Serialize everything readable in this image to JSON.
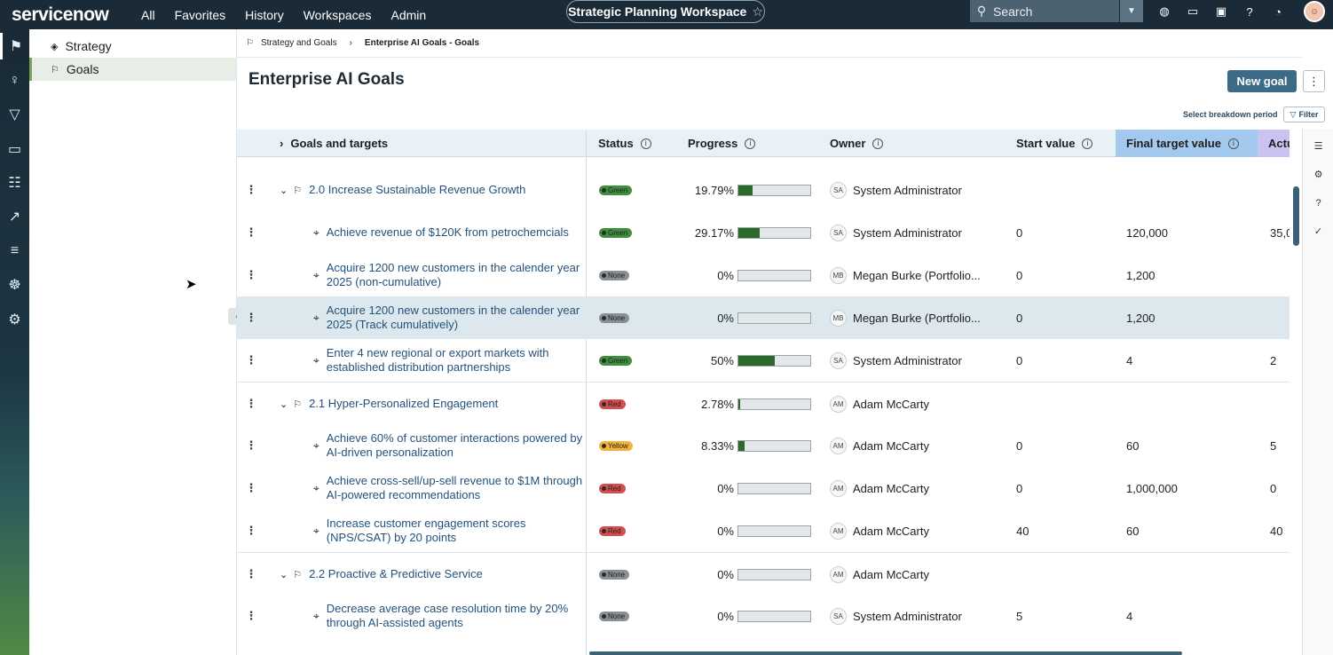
{
  "topnav": {
    "logo": "servicenow",
    "menu": [
      "All",
      "Favorites",
      "History",
      "Workspaces",
      "Admin"
    ],
    "workspace": "Strategic Planning Workspace",
    "search_placeholder": "Search"
  },
  "sidebar": {
    "items": [
      {
        "label": "Strategy",
        "icon": "diamond-icon"
      },
      {
        "label": "Goals",
        "icon": "flag-icon",
        "selected": true
      }
    ]
  },
  "breadcrumb": {
    "parent": "Strategy and Goals",
    "current": "Enterprise AI Goals - Goals"
  },
  "page": {
    "title": "Enterprise AI Goals",
    "new_goal": "New goal",
    "breakdown": "Select breakdown period",
    "filter": "Filter"
  },
  "columns": {
    "goals": "Goals and targets",
    "status": "Status",
    "progress": "Progress",
    "owner": "Owner",
    "start": "Start value",
    "final": "Final target value",
    "actual": "Actu"
  },
  "status_colors": {
    "Green": "#3f8f3f",
    "None": "#8a8f93",
    "Red": "#d24f4f",
    "Yellow": "#f0b63a"
  },
  "rows": [
    {
      "level": 0,
      "name": "2.0 Increase Sustainable Revenue Growth",
      "status": "Green",
      "pct": "19.79%",
      "progress": 0.1979,
      "ini": "SA",
      "owner": "System Administrator",
      "start": "",
      "final": "",
      "actual": ""
    },
    {
      "level": 1,
      "name": "Achieve revenue of $120K from petrochemcials",
      "status": "Green",
      "pct": "29.17%",
      "progress": 0.2917,
      "ini": "SA",
      "owner": "System Administrator",
      "start": "0",
      "final": "120,000",
      "actual": "35,0"
    },
    {
      "level": 1,
      "name": "Acquire 1200 new customers in the calender year 2025 (non-cumulative)",
      "status": "None",
      "pct": "0%",
      "progress": 0,
      "ini": "MB",
      "owner": "Megan Burke (Portfolio...",
      "start": "0",
      "final": "1,200",
      "actual": ""
    },
    {
      "level": 1,
      "name": "Acquire 1200 new customers in the calender year 2025 (Track cumulatively)",
      "status": "None",
      "pct": "0%",
      "progress": 0,
      "ini": "MB",
      "owner": "Megan Burke (Portfolio...",
      "start": "0",
      "final": "1,200",
      "actual": ""
    },
    {
      "level": 1,
      "name": "Enter 4 new regional or export markets with established distribution partnerships",
      "status": "Green",
      "pct": "50%",
      "progress": 0.5,
      "ini": "SA",
      "owner": "System Administrator",
      "start": "0",
      "final": "4",
      "actual": "2"
    },
    {
      "level": 0,
      "name": "2.1 Hyper-Personalized Engagement",
      "status": "Red",
      "pct": "2.78%",
      "progress": 0.0278,
      "ini": "AM",
      "owner": "Adam McCarty",
      "start": "",
      "final": "",
      "actual": ""
    },
    {
      "level": 1,
      "name": "Achieve 60% of customer interactions powered by AI-driven personalization",
      "status": "Yellow",
      "pct": "8.33%",
      "progress": 0.0833,
      "ini": "AM",
      "owner": "Adam McCarty",
      "start": "0",
      "final": "60",
      "actual": "5"
    },
    {
      "level": 1,
      "name": "Achieve cross-sell/up-sell revenue to $1M through AI-powered recommendations",
      "status": "Red",
      "pct": "0%",
      "progress": 0,
      "ini": "AM",
      "owner": "Adam McCarty",
      "start": "0",
      "final": "1,000,000",
      "actual": "0"
    },
    {
      "level": 1,
      "name": "Increase customer engagement scores (NPS/CSAT) by 20 points",
      "status": "Red",
      "pct": "0%",
      "progress": 0,
      "ini": "AM",
      "owner": "Adam McCarty",
      "start": "40",
      "final": "60",
      "actual": "40"
    },
    {
      "level": 0,
      "name": "2.2 Proactive & Predictive Service",
      "status": "None",
      "pct": "0%",
      "progress": 0,
      "ini": "AM",
      "owner": "Adam McCarty",
      "start": "",
      "final": "",
      "actual": ""
    },
    {
      "level": 1,
      "name": "Decrease average case resolution time by 20% through AI-assisted agents",
      "status": "None",
      "pct": "0%",
      "progress": 0,
      "ini": "SA",
      "owner": "System Administrator",
      "start": "5",
      "final": "4",
      "actual": ""
    }
  ]
}
